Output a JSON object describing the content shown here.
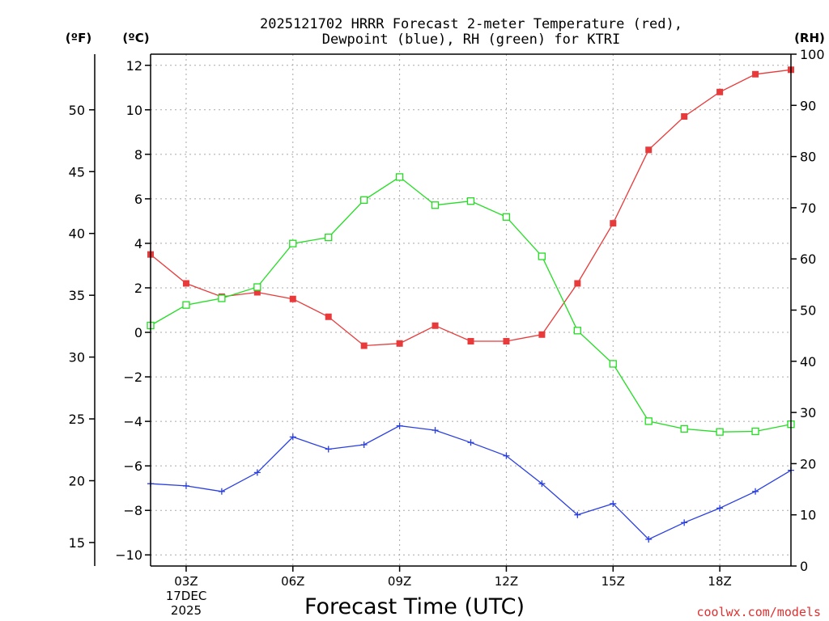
{
  "chart_data": {
    "type": "line",
    "title": "2025121702 HRRR Forecast 2-meter Temperature (red),",
    "title_line2": "Dewpoint (blue), RH (green) for KTRI",
    "xlabel": "Forecast Time (UTC)",
    "credit": "coolwx.com/models",
    "unit_left_f": "(ºF)",
    "unit_left_c": "(ºC)",
    "unit_right": "(RH)",
    "date_label_1": "17DEC",
    "date_label_2": "2025",
    "x_hours": [
      2,
      3,
      4,
      5,
      6,
      7,
      8,
      9,
      10,
      11,
      12,
      13,
      14,
      15,
      16,
      17,
      18,
      19,
      20
    ],
    "x_range": [
      2,
      20
    ],
    "x_ticks": [
      {
        "hour": 3,
        "label": "03Z"
      },
      {
        "hour": 6,
        "label": "06Z"
      },
      {
        "hour": 9,
        "label": "09Z"
      },
      {
        "hour": 12,
        "label": "12Z"
      },
      {
        "hour": 15,
        "label": "15Z"
      },
      {
        "hour": 18,
        "label": "18Z"
      }
    ],
    "y_c_range": [
      -10.5,
      12.5
    ],
    "y_c_ticks": [
      "-10",
      "-8",
      "-6",
      "-4",
      "-2",
      "0",
      "2",
      "4",
      "6",
      "8",
      "10",
      "12"
    ],
    "y_f_ticks": [
      "15",
      "20",
      "25",
      "30",
      "35",
      "40",
      "45",
      "50"
    ],
    "y_rh_range": [
      0,
      100
    ],
    "y_rh_ticks": [
      "0",
      "10",
      "20",
      "30",
      "40",
      "50",
      "60",
      "70",
      "80",
      "90",
      "100"
    ],
    "series": [
      {
        "name": "Temperature (°C)",
        "color": "#e83a3a",
        "marker": "filled-square",
        "axis": "c",
        "values": [
          3.5,
          2.2,
          1.6,
          1.8,
          1.5,
          0.7,
          -0.6,
          -0.5,
          0.3,
          -0.4,
          -0.4,
          -0.1,
          2.2,
          4.9,
          8.2,
          9.7,
          10.8,
          11.6,
          11.8
        ]
      },
      {
        "name": "Dewpoint (°C)",
        "color": "#2a3fe0",
        "marker": "plus",
        "axis": "c",
        "values": [
          -6.8,
          -6.9,
          -7.15,
          -6.3,
          -4.7,
          -5.25,
          -5.05,
          -4.2,
          -4.4,
          -4.95,
          -5.55,
          -6.8,
          -8.2,
          -7.7,
          -9.3,
          -8.55,
          -7.9,
          -7.15,
          -6.2
        ]
      },
      {
        "name": "RH (%)",
        "color": "#22dd22",
        "marker": "hollow-square",
        "axis": "rh",
        "values": [
          47,
          51,
          52.3,
          54.5,
          63,
          64.2,
          71.5,
          76,
          70.5,
          71.3,
          68.2,
          60.5,
          46,
          39.5,
          28.3,
          26.8,
          26.2,
          26.3,
          27.7
        ]
      }
    ]
  }
}
